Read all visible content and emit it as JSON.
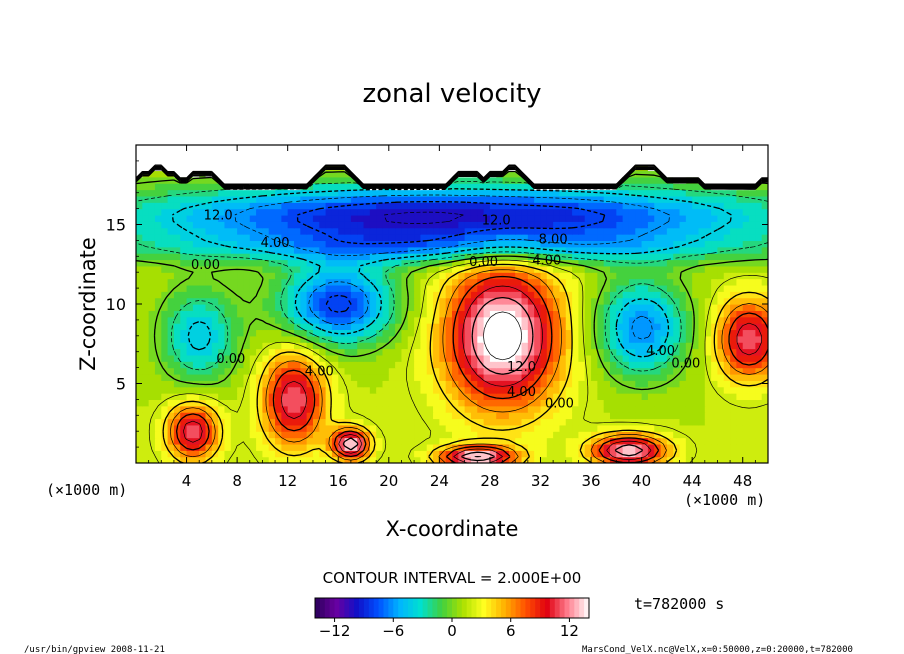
{
  "chart_data": {
    "type": "heatmap",
    "title": "zonal velocity",
    "xlabel": "X-coordinate",
    "ylabel": "Z-coordinate",
    "x_unit_note": "(×1000 m)",
    "y_unit_note": "(×1000 m)",
    "xlim": [
      0,
      50
    ],
    "ylim": [
      0,
      20
    ],
    "x_ticks": [
      4,
      8,
      12,
      16,
      20,
      24,
      28,
      32,
      36,
      40,
      44,
      48
    ],
    "y_ticks": [
      5,
      10,
      15
    ],
    "contour_interval_text": "CONTOUR INTERVAL = 2.000E+00",
    "contour_labels": [
      {
        "text": "12.0",
        "x": 6.5,
        "y": 15.3
      },
      {
        "text": "12.0",
        "x": 28.5,
        "y": 15.0
      },
      {
        "text": "8.00",
        "x": 33.0,
        "y": 13.8
      },
      {
        "text": "4.00",
        "x": 11.0,
        "y": 13.6
      },
      {
        "text": "0.00",
        "x": 5.5,
        "y": 12.2
      },
      {
        "text": "0.00",
        "x": 27.5,
        "y": 12.4
      },
      {
        "text": "4.00",
        "x": 32.5,
        "y": 12.5
      },
      {
        "text": "0.00",
        "x": 7.5,
        "y": 6.3
      },
      {
        "text": "4.00",
        "x": 14.5,
        "y": 5.5
      },
      {
        "text": "12.0",
        "x": 30.5,
        "y": 5.8
      },
      {
        "text": "4.00",
        "x": 30.5,
        "y": 4.2
      },
      {
        "text": "0.00",
        "x": 33.5,
        "y": 3.5
      },
      {
        "text": "4.00",
        "x": 41.5,
        "y": 6.8
      },
      {
        "text": "0.00",
        "x": 43.5,
        "y": 6.0
      }
    ],
    "field_features": [
      {
        "kind": "min",
        "x": 16,
        "y": 10,
        "value": -10,
        "rx": 4.5,
        "ry": 2.5
      },
      {
        "kind": "min",
        "x": 40,
        "y": 8.5,
        "value": -8,
        "rx": 3.5,
        "ry": 3.0
      },
      {
        "kind": "min",
        "x": 5,
        "y": 8.0,
        "value": -6,
        "rx": 3.0,
        "ry": 3.0
      },
      {
        "kind": "max",
        "x": 29,
        "y": 8.0,
        "value": 14,
        "rx": 4.5,
        "ry": 4.5
      },
      {
        "kind": "max",
        "x": 12.5,
        "y": 4.0,
        "value": 10,
        "rx": 2.5,
        "ry": 3.0
      },
      {
        "kind": "max",
        "x": 4.5,
        "y": 2.0,
        "value": 10,
        "rx": 2.0,
        "ry": 1.8
      },
      {
        "kind": "max",
        "x": 48.5,
        "y": 7.8,
        "value": 10,
        "rx": 2.5,
        "ry": 2.5
      },
      {
        "kind": "max",
        "x": 17,
        "y": 1.2,
        "value": 12,
        "rx": 1.5,
        "ry": 1.0
      },
      {
        "kind": "max",
        "x": 39,
        "y": 0.8,
        "value": 12,
        "rx": 3.0,
        "ry": 1.0
      },
      {
        "kind": "max",
        "x": 27,
        "y": 0.4,
        "value": 12,
        "rx": 3.0,
        "ry": 0.7
      },
      {
        "kind": "min",
        "x": 25,
        "y": 15.5,
        "value": -12,
        "rx": 25,
        "ry": 2.0
      },
      {
        "kind": "min",
        "x": 25,
        "y": 13.5,
        "value": -4,
        "rx": 25,
        "ry": 1.0
      }
    ],
    "colorbar": {
      "min": -14,
      "max": 14,
      "step": 1,
      "ticks": [
        -12,
        -6,
        0,
        6,
        12
      ],
      "tick_labels": [
        "−12",
        "−6",
        "0",
        "6",
        "12"
      ]
    },
    "colors": [
      "#2a005a",
      "#6a00a0",
      "#1010c8",
      "#0050ff",
      "#00b4ff",
      "#00e0d0",
      "#40d040",
      "#aae000",
      "#ffff20",
      "#ffb000",
      "#ff5000",
      "#e00010",
      "#ff8090",
      "#ffffff"
    ]
  },
  "time_label": "t=782000 s",
  "footer_left": "/usr/bin/gpview   2008-11-21",
  "footer_right": "MarsCond_VelX.nc@VelX,x=0:50000,z=0:20000,t=782000"
}
